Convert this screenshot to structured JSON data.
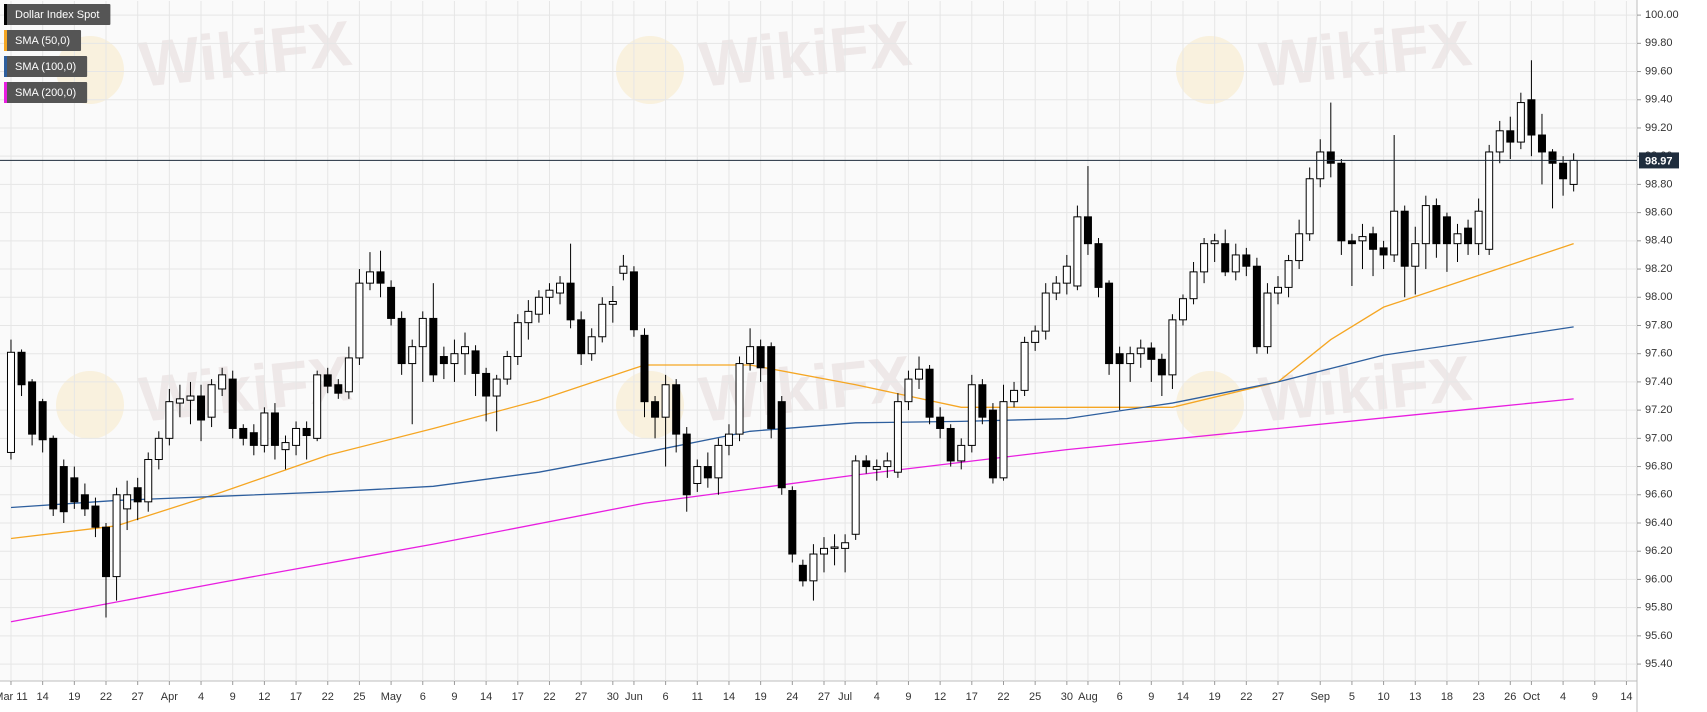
{
  "chart_data": {
    "type": "candlestick",
    "watermark": "WikiFX",
    "series": [
      {
        "name": "Dollar Index Spot",
        "type": "candlestick",
        "color": "#000000",
        "up_color": "#ffffff",
        "down_color": "#000000",
        "open": [
          96.9,
          97.61,
          97.4,
          97.26,
          97.0,
          96.8,
          96.72,
          96.6,
          96.52,
          96.37,
          96.02,
          96.5,
          96.65,
          96.55,
          96.85,
          97.0,
          97.25,
          97.27,
          97.3,
          97.15,
          97.35,
          97.42,
          97.07,
          97.04,
          96.95,
          97.18,
          96.92,
          96.95,
          97.07,
          97.0,
          97.45,
          97.38,
          97.33,
          97.57,
          98.1,
          98.18,
          98.07,
          97.85,
          97.53,
          97.65,
          97.85,
          97.58,
          97.53,
          97.6,
          97.62,
          97.46,
          97.3,
          97.42,
          97.58,
          97.82,
          97.88,
          98.0,
          98.03,
          98.1,
          97.84,
          97.6,
          97.72,
          97.95,
          98.17,
          98.18,
          97.73,
          97.26,
          97.15,
          97.38,
          97.03,
          96.68,
          96.8,
          96.72,
          96.95,
          97.03,
          97.53,
          97.65,
          97.65,
          97.26,
          96.63,
          96.1,
          95.99,
          96.18,
          96.22,
          96.22,
          96.32,
          96.84,
          96.78,
          96.8,
          96.76,
          97.26,
          97.42,
          97.49,
          97.15,
          97.07,
          96.84,
          96.95,
          97.38,
          97.2,
          96.72,
          97.26,
          97.34,
          97.68,
          97.76,
          98.03,
          98.1,
          98.08,
          98.57,
          98.38,
          98.1,
          97.6,
          97.53,
          97.6,
          97.64,
          97.56,
          97.45,
          97.84,
          97.99,
          98.18,
          98.38,
          98.38,
          98.18,
          98.3,
          98.22,
          97.65,
          98.03,
          98.07,
          98.26,
          98.45,
          98.84,
          99.03,
          98.95,
          98.4,
          98.4,
          98.45,
          98.35,
          98.3,
          98.61,
          98.22,
          98.38,
          98.65,
          98.57,
          98.38,
          98.49,
          98.38,
          98.34,
          99.03,
          99.18,
          99.1,
          99.4,
          99.15,
          99.03,
          98.95,
          98.8
        ],
        "high": [
          97.7,
          97.63,
          97.42,
          97.28,
          97.02,
          96.85,
          96.8,
          96.68,
          96.58,
          96.4,
          96.65,
          96.7,
          96.72,
          96.9,
          97.05,
          97.35,
          97.38,
          97.4,
          97.38,
          97.42,
          97.5,
          97.48,
          97.1,
          97.1,
          97.22,
          97.25,
          97.02,
          97.12,
          97.12,
          97.48,
          97.5,
          97.42,
          97.65,
          98.2,
          98.32,
          98.33,
          98.12,
          97.9,
          97.7,
          97.9,
          98.1,
          97.65,
          97.7,
          97.75,
          97.66,
          97.5,
          97.45,
          97.62,
          97.88,
          97.98,
          98.05,
          98.1,
          98.15,
          98.38,
          97.9,
          97.78,
          98.0,
          98.08,
          98.3,
          98.22,
          97.78,
          97.3,
          97.45,
          97.42,
          97.08,
          96.85,
          96.9,
          97.0,
          97.1,
          97.58,
          97.78,
          97.7,
          97.68,
          97.3,
          96.66,
          96.14,
          96.25,
          96.3,
          96.32,
          96.32,
          96.88,
          96.88,
          96.85,
          96.9,
          97.32,
          97.48,
          97.58,
          97.52,
          97.22,
          97.1,
          97.0,
          97.45,
          97.42,
          97.25,
          97.38,
          97.4,
          97.72,
          97.8,
          98.1,
          98.15,
          98.3,
          98.65,
          98.93,
          98.42,
          98.12,
          97.65,
          97.65,
          97.7,
          97.68,
          97.6,
          97.88,
          98.02,
          98.25,
          98.42,
          98.45,
          98.48,
          98.38,
          98.35,
          98.28,
          98.1,
          98.15,
          98.3,
          98.55,
          98.92,
          99.12,
          99.38,
          98.98,
          98.45,
          98.52,
          98.5,
          98.4,
          99.15,
          98.65,
          98.5,
          98.72,
          98.7,
          98.6,
          98.52,
          98.55,
          98.7,
          99.08,
          99.25,
          99.28,
          99.45,
          99.68,
          99.3,
          99.05,
          99.0,
          99.02
        ],
        "low": [
          96.85,
          97.3,
          96.95,
          96.9,
          96.45,
          96.4,
          96.5,
          96.45,
          96.3,
          95.73,
          95.85,
          96.35,
          96.42,
          96.48,
          96.78,
          96.95,
          97.15,
          97.1,
          96.98,
          97.08,
          97.3,
          97.0,
          96.95,
          96.88,
          96.9,
          96.85,
          96.78,
          96.88,
          96.85,
          96.98,
          97.32,
          97.28,
          97.28,
          97.52,
          98.05,
          98.0,
          97.8,
          97.45,
          97.1,
          97.4,
          97.4,
          97.42,
          97.4,
          97.45,
          97.3,
          97.12,
          97.05,
          97.38,
          97.52,
          97.7,
          97.82,
          97.88,
          97.95,
          97.78,
          97.52,
          97.55,
          97.68,
          97.82,
          98.12,
          97.72,
          97.15,
          97.0,
          96.8,
          96.9,
          96.48,
          96.62,
          96.65,
          96.6,
          96.88,
          96.98,
          97.48,
          97.4,
          97.0,
          96.6,
          96.12,
          95.95,
          95.85,
          96.05,
          96.1,
          96.05,
          96.28,
          96.75,
          96.7,
          96.72,
          96.72,
          97.2,
          97.35,
          97.1,
          97.0,
          96.8,
          96.78,
          96.9,
          97.1,
          96.68,
          96.7,
          97.22,
          97.3,
          97.62,
          97.7,
          97.98,
          98.02,
          98.05,
          98.3,
          98.0,
          97.45,
          97.2,
          97.4,
          97.5,
          97.4,
          97.3,
          97.35,
          97.8,
          97.95,
          98.1,
          98.25,
          98.15,
          98.12,
          98.15,
          97.6,
          97.6,
          97.95,
          98.0,
          98.2,
          98.4,
          98.78,
          98.85,
          98.3,
          98.08,
          98.2,
          98.15,
          98.2,
          98.25,
          98.0,
          98.02,
          98.2,
          98.28,
          98.18,
          98.25,
          98.3,
          98.3,
          98.3,
          98.95,
          98.98,
          99.05,
          99.0,
          98.8,
          98.63,
          98.72,
          98.75
        ],
        "close": [
          97.61,
          97.38,
          97.03,
          96.99,
          96.5,
          96.48,
          96.55,
          96.5,
          96.37,
          96.02,
          96.6,
          96.6,
          96.55,
          96.85,
          97.0,
          97.26,
          97.28,
          97.3,
          97.13,
          97.38,
          97.45,
          97.07,
          97.0,
          96.95,
          97.18,
          96.95,
          96.97,
          97.07,
          97.02,
          97.45,
          97.37,
          97.32,
          97.57,
          98.1,
          98.18,
          98.1,
          97.85,
          97.53,
          97.65,
          97.85,
          97.45,
          97.53,
          97.6,
          97.65,
          97.46,
          97.3,
          97.42,
          97.58,
          97.82,
          97.9,
          98.0,
          98.05,
          98.1,
          97.84,
          97.6,
          97.72,
          97.95,
          97.97,
          98.22,
          97.77,
          97.26,
          97.15,
          97.38,
          97.03,
          96.6,
          96.8,
          96.72,
          96.95,
          97.03,
          97.53,
          97.65,
          97.5,
          97.07,
          96.65,
          96.18,
          95.99,
          96.18,
          96.22,
          96.23,
          96.26,
          96.84,
          96.8,
          96.8,
          96.84,
          97.26,
          97.42,
          97.49,
          97.15,
          97.07,
          96.84,
          96.95,
          97.38,
          97.15,
          96.72,
          97.26,
          97.34,
          97.68,
          97.76,
          98.03,
          98.1,
          98.22,
          98.57,
          98.38,
          98.07,
          97.53,
          97.53,
          97.6,
          97.64,
          97.56,
          97.45,
          97.84,
          97.99,
          98.18,
          98.38,
          98.4,
          98.18,
          98.3,
          98.22,
          97.65,
          98.03,
          98.07,
          98.26,
          98.45,
          98.84,
          99.03,
          98.95,
          98.4,
          98.38,
          98.43,
          98.34,
          98.3,
          98.61,
          98.22,
          98.38,
          98.65,
          98.38,
          98.38,
          98.45,
          98.38,
          98.61,
          99.03,
          99.18,
          99.1,
          99.38,
          99.15,
          99.03,
          98.95,
          98.84,
          98.97
        ]
      },
      {
        "name": "SMA (50,0)",
        "type": "line",
        "color": "#f5a623",
        "x": [
          0,
          10,
          20,
          30,
          40,
          50,
          60,
          70,
          80,
          90,
          100,
          110,
          120,
          125,
          130,
          140,
          148
        ],
        "values": [
          96.29,
          96.38,
          96.62,
          96.88,
          97.07,
          97.27,
          97.52,
          97.52,
          97.38,
          97.22,
          97.22,
          97.22,
          97.4,
          97.7,
          97.93,
          98.18,
          98.38
        ]
      },
      {
        "name": "SMA (100,0)",
        "type": "line",
        "color": "#2e5f9e",
        "x": [
          0,
          10,
          20,
          30,
          40,
          50,
          60,
          70,
          80,
          90,
          100,
          110,
          120,
          130,
          140,
          148
        ],
        "values": [
          96.51,
          96.56,
          96.59,
          96.62,
          96.66,
          96.76,
          96.9,
          97.05,
          97.11,
          97.12,
          97.14,
          97.25,
          97.4,
          97.59,
          97.7,
          97.79
        ]
      },
      {
        "name": "SMA (200,0)",
        "type": "line",
        "color": "#e81ee0",
        "x": [
          0,
          20,
          40,
          60,
          80,
          100,
          120,
          140,
          148
        ],
        "values": [
          95.7,
          95.98,
          96.25,
          96.54,
          96.74,
          96.92,
          97.07,
          97.22,
          97.28
        ]
      }
    ],
    "last_price": 98.97,
    "last_price_color": "#1f2d3d",
    "xlim": [
      -1.04,
      154
    ],
    "xticks": [
      {
        "value": 0,
        "label": "Mar 11"
      },
      {
        "value": 3,
        "label": "14"
      },
      {
        "value": 6,
        "label": "19"
      },
      {
        "value": 9,
        "label": "22"
      },
      {
        "value": 12,
        "label": "27"
      },
      {
        "value": 15,
        "label": "Apr"
      },
      {
        "value": 18,
        "label": "4"
      },
      {
        "value": 21,
        "label": "9"
      },
      {
        "value": 24,
        "label": "12"
      },
      {
        "value": 27,
        "label": "17"
      },
      {
        "value": 30,
        "label": "22"
      },
      {
        "value": 33,
        "label": "25"
      },
      {
        "value": 36,
        "label": "May"
      },
      {
        "value": 39,
        "label": "6"
      },
      {
        "value": 42,
        "label": "9"
      },
      {
        "value": 45,
        "label": "14"
      },
      {
        "value": 48,
        "label": "17"
      },
      {
        "value": 51,
        "label": "22"
      },
      {
        "value": 54,
        "label": "27"
      },
      {
        "value": 57,
        "label": "30"
      },
      {
        "value": 59,
        "label": "Jun"
      },
      {
        "value": 62,
        "label": "6"
      },
      {
        "value": 65,
        "label": "11"
      },
      {
        "value": 68,
        "label": "14"
      },
      {
        "value": 71,
        "label": "19"
      },
      {
        "value": 74,
        "label": "24"
      },
      {
        "value": 77,
        "label": "27"
      },
      {
        "value": 79,
        "label": "Jul"
      },
      {
        "value": 82,
        "label": "4"
      },
      {
        "value": 85,
        "label": "9"
      },
      {
        "value": 88,
        "label": "12"
      },
      {
        "value": 91,
        "label": "17"
      },
      {
        "value": 94,
        "label": "22"
      },
      {
        "value": 97,
        "label": "25"
      },
      {
        "value": 100,
        "label": "30"
      },
      {
        "value": 102,
        "label": "Aug"
      },
      {
        "value": 105,
        "label": "6"
      },
      {
        "value": 108,
        "label": "9"
      },
      {
        "value": 111,
        "label": "14"
      },
      {
        "value": 114,
        "label": "19"
      },
      {
        "value": 117,
        "label": "22"
      },
      {
        "value": 120,
        "label": "27"
      },
      {
        "value": 124,
        "label": "Sep"
      },
      {
        "value": 127,
        "label": "5"
      },
      {
        "value": 130,
        "label": "10"
      },
      {
        "value": 133,
        "label": "13"
      },
      {
        "value": 136,
        "label": "18"
      },
      {
        "value": 139,
        "label": "23"
      },
      {
        "value": 142,
        "label": "26"
      },
      {
        "value": 144,
        "label": "Oct"
      },
      {
        "value": 147,
        "label": "4"
      },
      {
        "value": 150,
        "label": "9"
      },
      {
        "value": 153,
        "label": "14"
      }
    ],
    "ylim": [
      95.28,
      100.1
    ],
    "yticks": [
      {
        "value": 95.4,
        "label": "95.40"
      },
      {
        "value": 95.6,
        "label": "95.60"
      },
      {
        "value": 95.8,
        "label": "95.80"
      },
      {
        "value": 96.0,
        "label": "96.00"
      },
      {
        "value": 96.2,
        "label": "96.20"
      },
      {
        "value": 96.4,
        "label": "96.40"
      },
      {
        "value": 96.6,
        "label": "96.60"
      },
      {
        "value": 96.8,
        "label": "96.80"
      },
      {
        "value": 97.0,
        "label": "97.00"
      },
      {
        "value": 97.2,
        "label": "97.20"
      },
      {
        "value": 97.4,
        "label": "97.40"
      },
      {
        "value": 97.6,
        "label": "97.60"
      },
      {
        "value": 97.8,
        "label": "97.80"
      },
      {
        "value": 98.0,
        "label": "98.00"
      },
      {
        "value": 98.2,
        "label": "98.20"
      },
      {
        "value": 98.4,
        "label": "98.40"
      },
      {
        "value": 98.6,
        "label": "98.60"
      },
      {
        "value": 98.8,
        "label": "98.80"
      },
      {
        "value": 99.0,
        "label": "99.00"
      },
      {
        "value": 99.2,
        "label": "99.20"
      },
      {
        "value": 99.4,
        "label": "99.40"
      },
      {
        "value": 99.6,
        "label": "99.60"
      },
      {
        "value": 99.8,
        "label": "99.80"
      },
      {
        "value": 100.0,
        "label": "100.00"
      }
    ],
    "grid": true
  }
}
